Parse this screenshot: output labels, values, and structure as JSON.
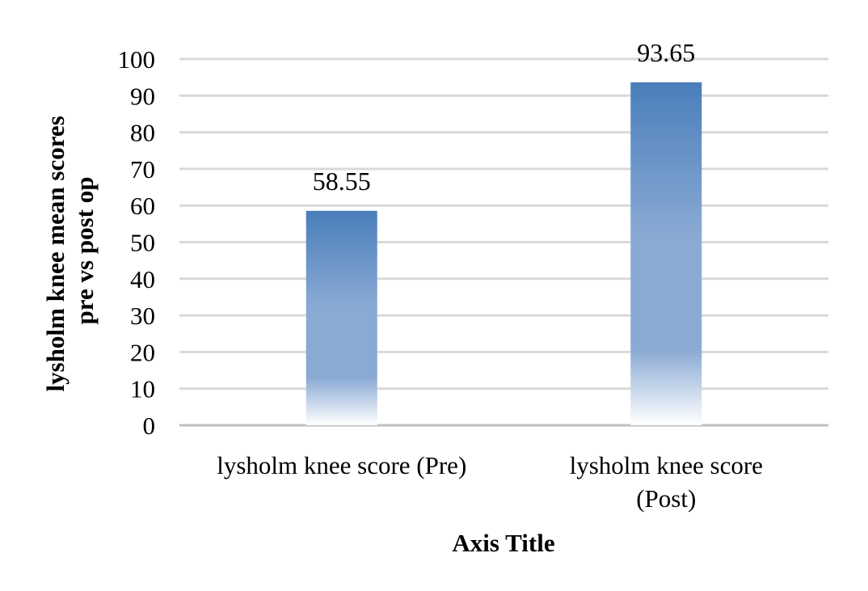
{
  "chart_data": {
    "type": "bar",
    "title": "",
    "categories": [
      [
        "lysholm knee score (Pre)"
      ],
      [
        "lysholm knee score",
        "(Post)"
      ]
    ],
    "values": [
      58.55,
      93.65
    ],
    "data_labels": [
      "58.55",
      "93.65"
    ],
    "xlabel": "Axis Title",
    "ylabel": [
      "lysholm knee mean scores",
      "pre vs post op"
    ],
    "ylim": [
      0,
      100
    ],
    "ytick_step": 10,
    "grid": true,
    "legend": "none"
  },
  "colors": {
    "bar_top": "#4a7ebb",
    "bar_mid": "#8aaad4",
    "bar_bottom": "#ffffff",
    "gridline": "#d9d9d9",
    "axis_line": "#bfbfbf"
  }
}
